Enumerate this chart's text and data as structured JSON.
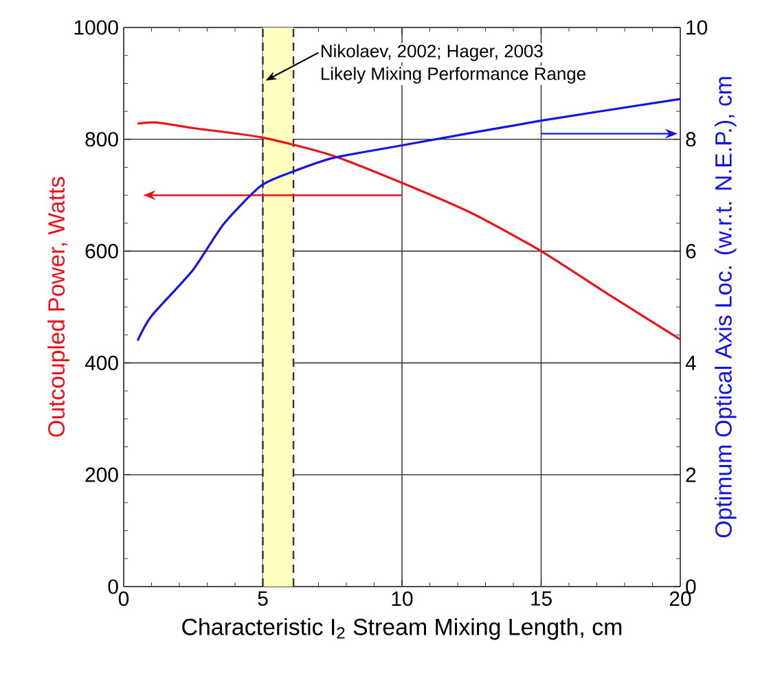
{
  "chart_data": {
    "type": "line",
    "xlabel": "Characteristic I$_{2}$ Stream Mixing Length, cm",
    "ylabel": "Outcoupled Power, Watts",
    "y2label": "Optimum Optical Axis Loc. (w.r.t. N.E.P.), cm",
    "annotations": [
      {
        "text": "Nikolaev, 2002; Hager, 2003",
        "x": 5.1,
        "y": 905
      },
      "Likely Mixing Performance Range"
    ],
    "series": [
      {
        "color": "#e8131b",
        "x": [
          0.5,
          1.2,
          2.5,
          5,
          7.5,
          10,
          12.5,
          15,
          17.5,
          20
        ],
        "values": [
          828,
          830,
          820,
          803,
          771,
          722,
          668,
          600,
          520,
          442
        ]
      },
      {
        "color": "#1414e0",
        "axis": "y2",
        "x": [
          0.5,
          1.0,
          2.47,
          3.6,
          4.94,
          6.07,
          7.56,
          9.98,
          14.96,
          20
        ],
        "values": [
          4.4,
          4.84,
          5.65,
          6.49,
          7.17,
          7.42,
          7.67,
          7.89,
          8.33,
          8.72
        ]
      }
    ],
    "bands": [
      {
        "axis": "x",
        "from": 5,
        "to": 6.1,
        "color": "#ffffc0"
      }
    ],
    "ref_lines": [
      {
        "axis": "x",
        "value": 5,
        "color": "#333333",
        "line_style": "dashed"
      },
      {
        "axis": "x",
        "value": 6.1,
        "color": "#333333",
        "line_style": "dashed"
      }
    ],
    "xlim": [
      0,
      20
    ],
    "xticks": [
      0,
      5,
      10,
      15,
      20
    ],
    "ylim": [
      0,
      1000
    ],
    "yticks": [
      0,
      200,
      400,
      600,
      800,
      1000
    ],
    "y2lim": [
      0,
      10
    ],
    "y2ticks": [
      0,
      2,
      4,
      6,
      8,
      10
    ],
    "grid": true,
    "marker": "none",
    "line_style": "solid"
  }
}
